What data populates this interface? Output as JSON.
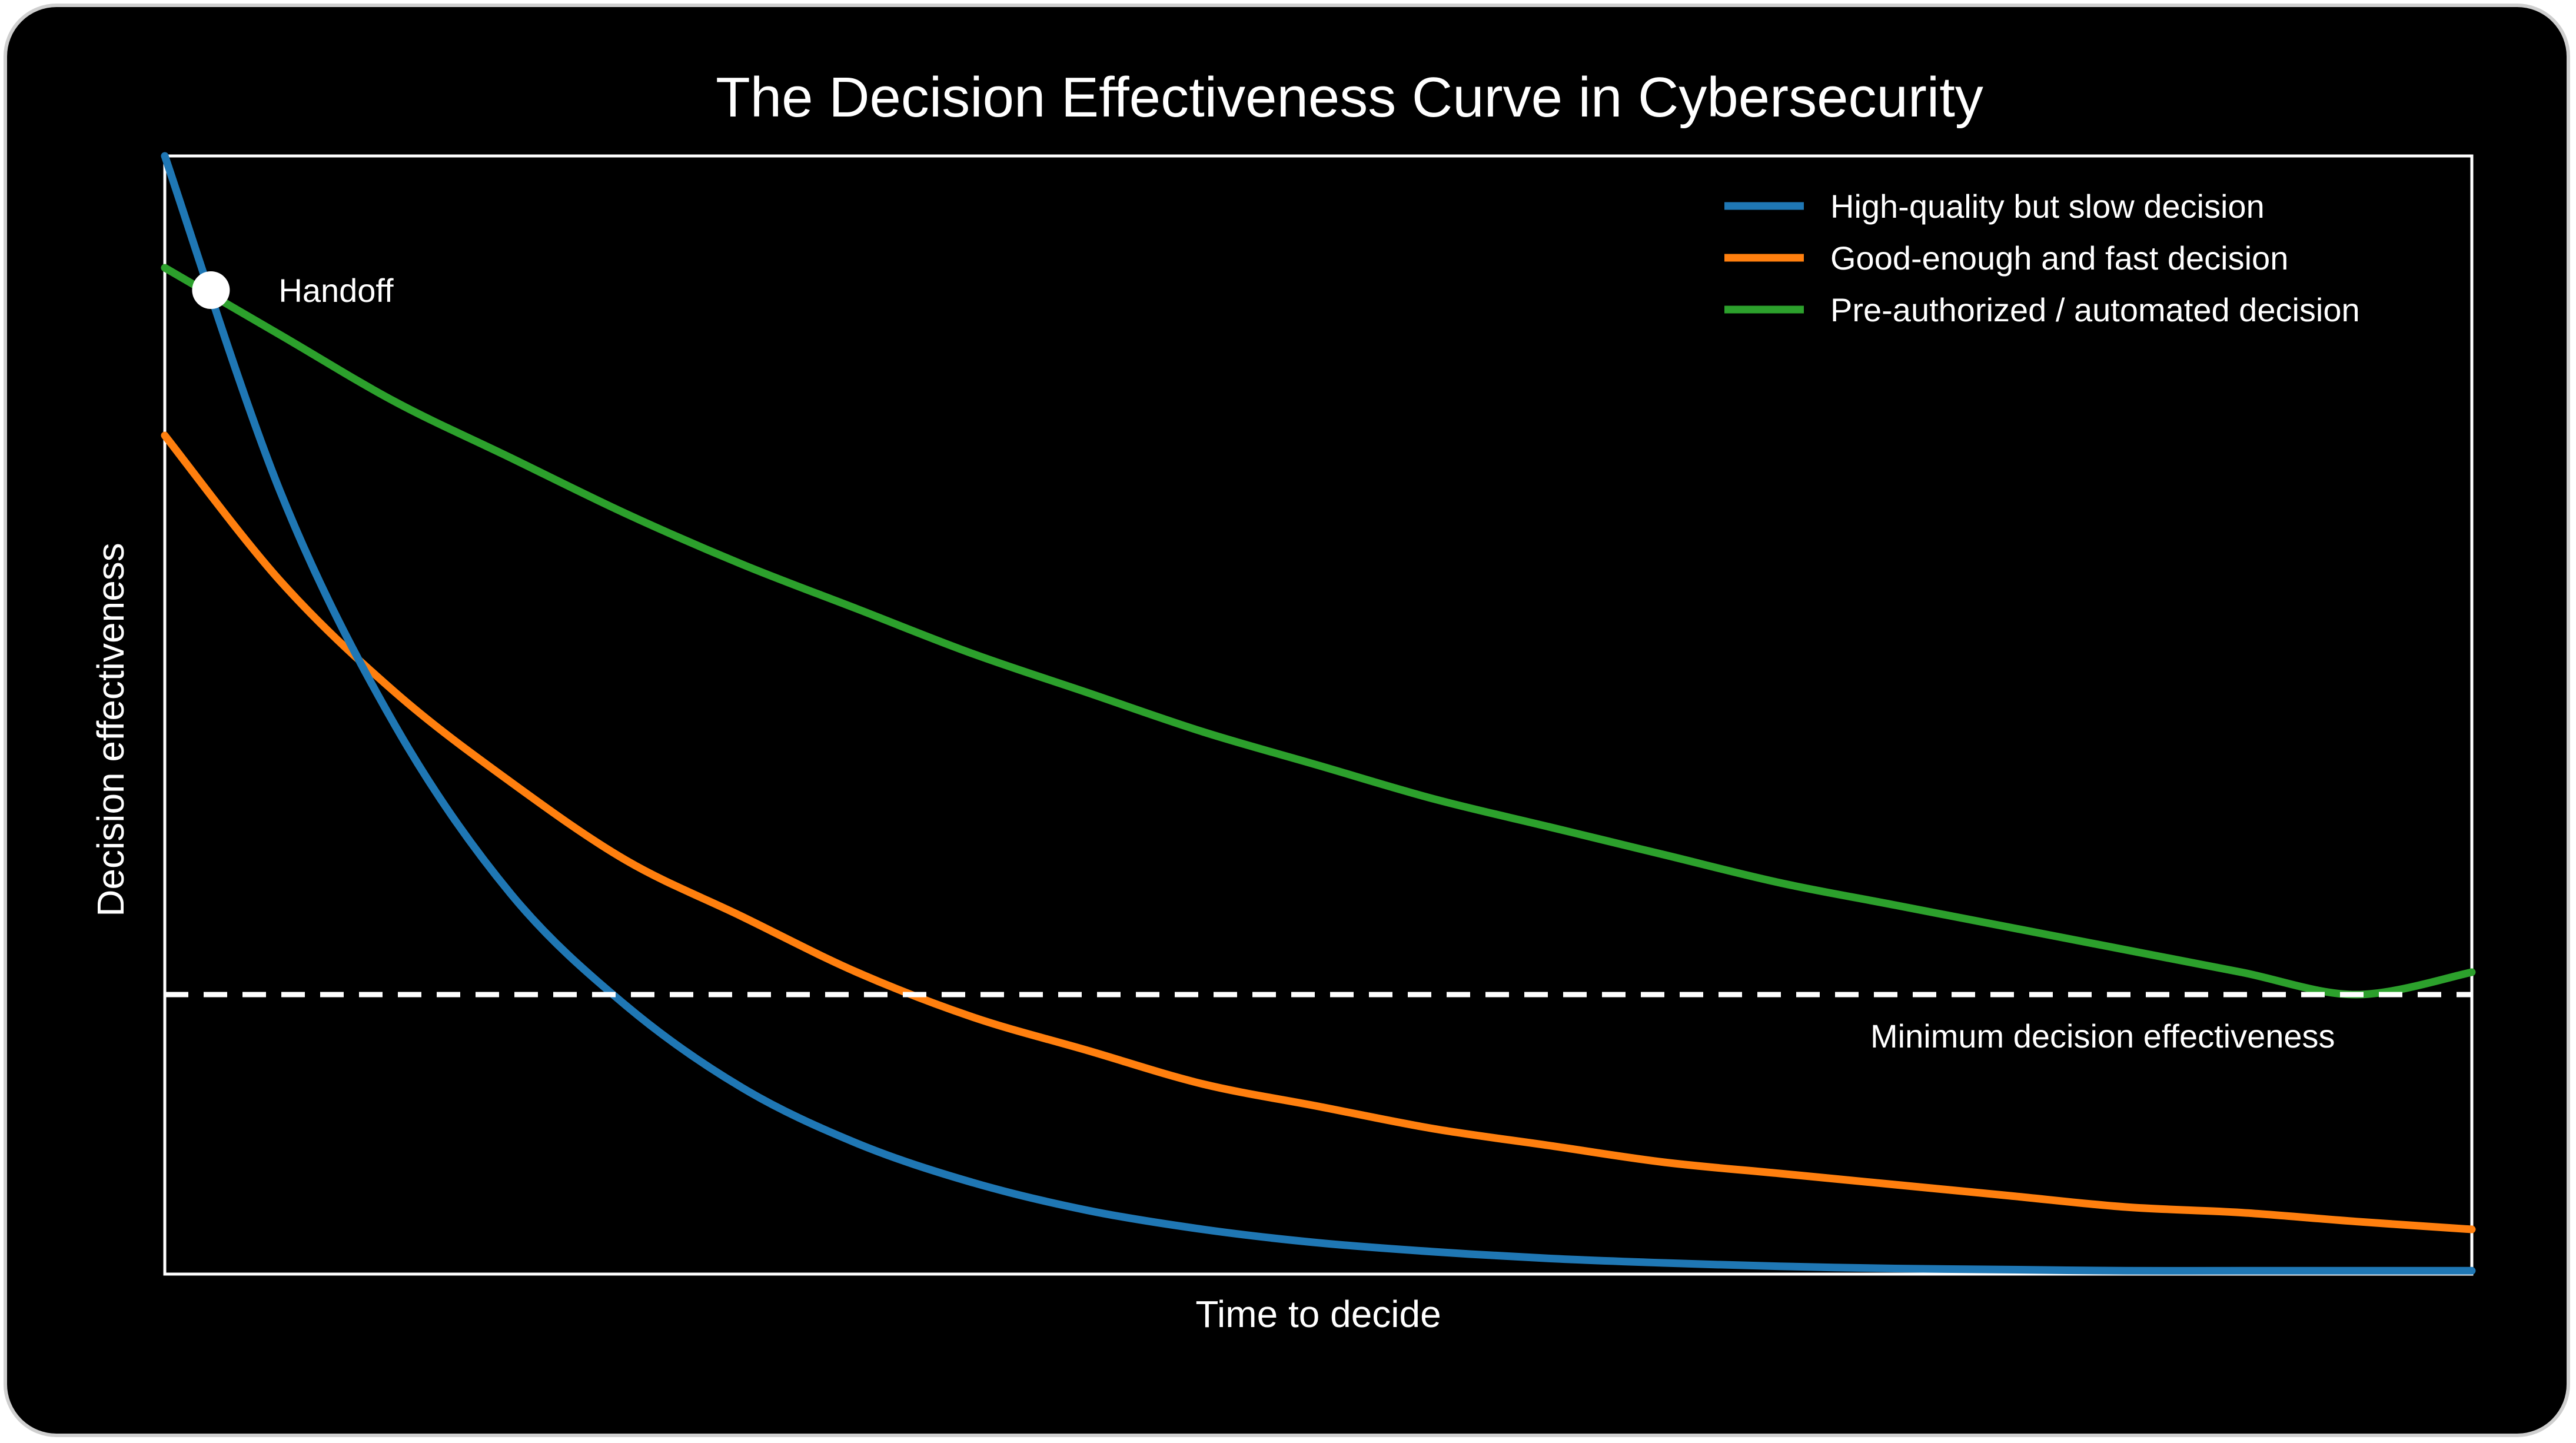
{
  "chart_data": {
    "type": "line",
    "title": "The Decision Effectiveness Curve in Cybersecurity",
    "xlabel": "Time to decide",
    "ylabel": "Decision effectiveness",
    "xlim": [
      0,
      1
    ],
    "ylim": [
      0,
      1
    ],
    "axes_ticks_shown": false,
    "grid": false,
    "legend_position": "top-right",
    "x": [
      0,
      0.05,
      0.1,
      0.15,
      0.2,
      0.25,
      0.3,
      0.35,
      0.4,
      0.45,
      0.5,
      0.55,
      0.6,
      0.65,
      0.7,
      0.75,
      0.8,
      0.85,
      0.9,
      0.95,
      1.0
    ],
    "series": [
      {
        "name": "High-quality but slow decision",
        "color": "#1f77b4",
        "values": [
          1.0,
          0.7,
          0.49,
          0.34,
          0.24,
          0.167,
          0.117,
          0.082,
          0.057,
          0.04,
          0.028,
          0.02,
          0.014,
          0.01,
          0.007,
          0.005,
          0.004,
          0.003,
          0.003,
          0.003,
          0.003
        ]
      },
      {
        "name": "Good-enough and fast decision",
        "color": "#ff7f0e",
        "values": [
          0.75,
          0.62,
          0.52,
          0.44,
          0.37,
          0.32,
          0.27,
          0.23,
          0.2,
          0.17,
          0.15,
          0.13,
          0.115,
          0.1,
          0.09,
          0.08,
          0.07,
          0.06,
          0.055,
          0.047,
          0.04
        ]
      },
      {
        "name": "Pre-authorized / automated decision",
        "color": "#2ca02c",
        "values": [
          0.9,
          0.84,
          0.78,
          0.73,
          0.68,
          0.635,
          0.595,
          0.555,
          0.52,
          0.485,
          0.455,
          0.425,
          0.4,
          0.375,
          0.35,
          0.33,
          0.31,
          0.29,
          0.27,
          0.25,
          0.27
        ]
      }
    ],
    "reference_line": {
      "label": "Minimum decision effectiveness",
      "y": 0.25,
      "style": "dashed",
      "color": "#ffffff"
    },
    "annotations": [
      {
        "label": "Handoff",
        "x": 0.02,
        "y": 0.88,
        "marker": "circle",
        "color": "#ffffff"
      }
    ]
  }
}
